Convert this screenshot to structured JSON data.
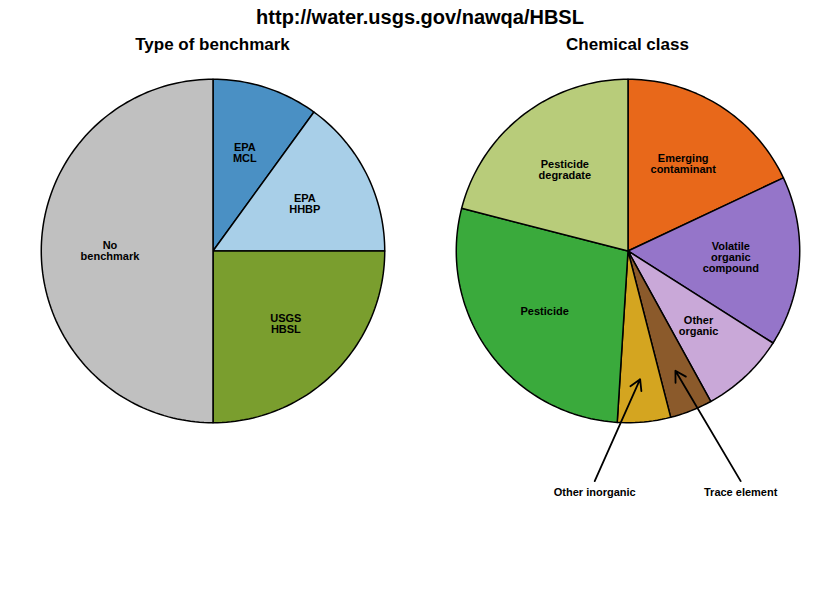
{
  "title": "http://water.usgs.gov/nawqa/HBSL",
  "chart_data": [
    {
      "type": "pie",
      "title": "Type of benchmark",
      "categories": [
        "EPA\nMCL",
        "EPA\nHHBP",
        "USGS\nHBSL",
        "No\nbenchmark"
      ],
      "values": [
        10,
        15,
        25,
        50
      ],
      "colors": [
        "#4a90c4",
        "#a8cfe8",
        "#7a9e2e",
        "#c0c0c0"
      ]
    },
    {
      "type": "pie",
      "title": "Chemical class",
      "categories": [
        "Emerging\ncontaminant",
        "Volatile\norganic\ncompound",
        "Other\norganic",
        "Trace element",
        "Other inorganic",
        "Pesticide",
        "Pesticide\ndegradate"
      ],
      "values": [
        18,
        16,
        8,
        4,
        5,
        28,
        21
      ],
      "colors": [
        "#e8681a",
        "#9575c9",
        "#c9a8d8",
        "#8B5A2B",
        "#d4a520",
        "#3aaa3c",
        "#b8cc7a"
      ]
    }
  ]
}
